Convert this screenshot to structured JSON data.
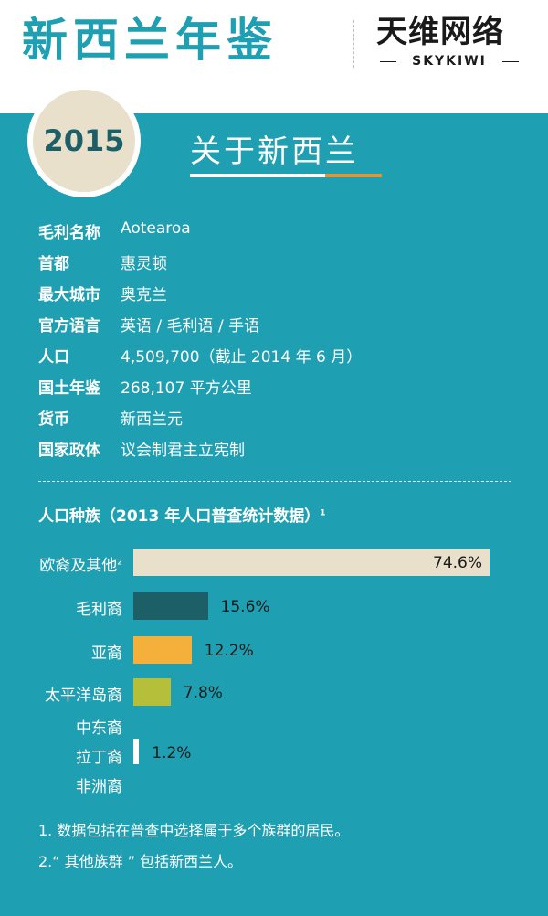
{
  "header": {
    "title": "新西兰年鉴",
    "logo_cn": "天维网络",
    "logo_en": "SKYKIWI"
  },
  "year": "2015",
  "section_title": "关于新西兰",
  "colors": {
    "teal": "#1f9fb2",
    "beige": "#e8e0cb",
    "dark_teal": "#1d5f66",
    "orange": "#f4b03a",
    "olive": "#b5bf3a",
    "accent_orange": "#e8922e"
  },
  "facts": [
    {
      "label": "毛利名称",
      "value": "Aotearoa"
    },
    {
      "label": "首都",
      "value": "惠灵顿"
    },
    {
      "label": "最大城市",
      "value": "奥克兰"
    },
    {
      "label": "官方语言",
      "value": "英语 / 毛利语 / 手语"
    },
    {
      "label": "人口",
      "value": "4,509,700（截止 2014 年 6 月）"
    },
    {
      "label": "国土年鉴",
      "value": "268,107 平方公里"
    },
    {
      "label": "货币",
      "value": "新西兰元"
    },
    {
      "label": "国家政体",
      "value": "议会制君主立宪制"
    }
  ],
  "chart_data": {
    "type": "bar",
    "orientation": "horizontal",
    "title": "人口种族（2013 年人口普查统计数据）",
    "title_note": "1",
    "categories": [
      "欧裔及其他",
      "毛利裔",
      "亚裔",
      "太平洋岛裔",
      "中东裔 / 拉丁裔 / 非洲裔"
    ],
    "category_lines": [
      [
        "欧裔及其他"
      ],
      [
        "毛利裔"
      ],
      [
        "亚裔"
      ],
      [
        "太平洋岛裔"
      ],
      [
        "中东裔",
        "拉丁裔",
        "非洲裔"
      ]
    ],
    "category_notes": [
      "2",
      "",
      "",
      "",
      ""
    ],
    "values": [
      74.6,
      15.6,
      12.2,
      7.8,
      1.2
    ],
    "value_labels": [
      "74.6%",
      "15.6%",
      "12.2%",
      "7.8%",
      "1.2%"
    ],
    "bar_colors": [
      "#e8e0cb",
      "#1d5f66",
      "#f4b03a",
      "#b5bf3a",
      "#ffffff"
    ],
    "xlim": [
      0,
      74.6
    ],
    "unit": "%"
  },
  "notes": [
    "1. 数据包括在普查中选择属于多个族群的居民。",
    "2.“ 其他族群 ” 包括新西兰人。"
  ]
}
